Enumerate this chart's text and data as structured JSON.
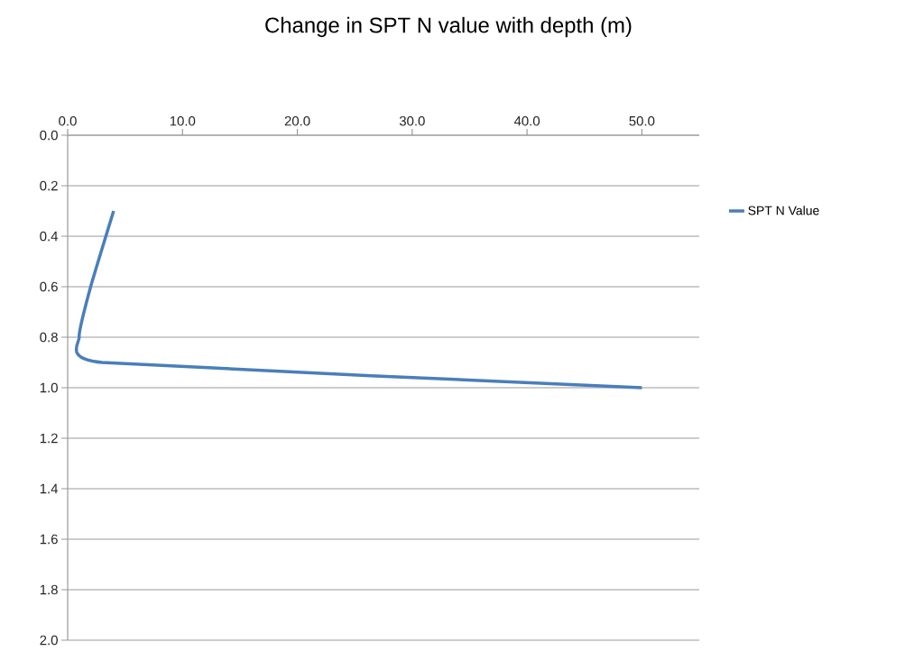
{
  "chart_data": {
    "type": "line",
    "title": "Change in SPT N value with depth (m)",
    "x": [
      4,
      2,
      1,
      3,
      50
    ],
    "series": [
      {
        "name": "SPT N Value",
        "color": "#4a7ebb",
        "values": [
          0.3,
          0.6,
          0.8,
          0.9,
          1.0
        ]
      }
    ],
    "xlim": [
      0,
      55
    ],
    "xticks": [
      {
        "value": 0,
        "label": "0.0"
      },
      {
        "value": 10,
        "label": "10.0"
      },
      {
        "value": 20,
        "label": "20.0"
      },
      {
        "value": 30,
        "label": "30.0"
      },
      {
        "value": 40,
        "label": "40.0"
      },
      {
        "value": 50,
        "label": "50.0"
      }
    ],
    "ylim": [
      2.0,
      0.0
    ],
    "yticks": [
      {
        "value": 0,
        "label": "0.0"
      },
      {
        "value": 0.2,
        "label": "0.2"
      },
      {
        "value": 0.4,
        "label": "0.4"
      },
      {
        "value": 0.6,
        "label": "0.6"
      },
      {
        "value": 0.8,
        "label": "0.8"
      },
      {
        "value": 1.0,
        "label": "1.0"
      },
      {
        "value": 1.2,
        "label": "1.2"
      },
      {
        "value": 1.4,
        "label": "1.4"
      },
      {
        "value": 1.6,
        "label": "1.6"
      },
      {
        "value": 1.8,
        "label": "1.8"
      },
      {
        "value": 2.0,
        "label": "2.0"
      }
    ],
    "grid": "y",
    "legend": "right",
    "marker": "none",
    "line_style": "solid"
  }
}
